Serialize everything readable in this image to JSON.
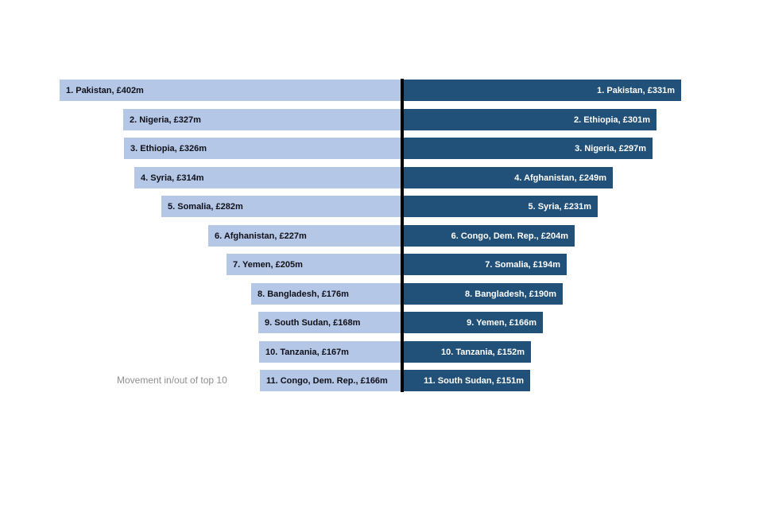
{
  "chart_data": {
    "type": "bar",
    "orientation": "horizontal-back-to-back",
    "title": "",
    "unit": "£ millions",
    "annotation": "Movement in/out of top 10",
    "colors": {
      "left_bar": "#b4c7e7",
      "right_bar": "#215079",
      "divider": "#000000",
      "left_text": "#101018",
      "right_text": "#ffffff",
      "annotation_text": "#8f8f8f"
    },
    "left": {
      "items": [
        {
          "rank": 1,
          "country": "Pakistan",
          "value": 402,
          "label": "1. Pakistan, £402m"
        },
        {
          "rank": 2,
          "country": "Nigeria",
          "value": 327,
          "label": "2. Nigeria, £327m"
        },
        {
          "rank": 3,
          "country": "Ethiopia",
          "value": 326,
          "label": "3. Ethiopia, £326m"
        },
        {
          "rank": 4,
          "country": "Syria",
          "value": 314,
          "label": "4. Syria, £314m"
        },
        {
          "rank": 5,
          "country": "Somalia",
          "value": 282,
          "label": "5. Somalia, £282m"
        },
        {
          "rank": 6,
          "country": "Afghanistan",
          "value": 227,
          "label": "6. Afghanistan, £227m"
        },
        {
          "rank": 7,
          "country": "Yemen",
          "value": 205,
          "label": "7. Yemen, £205m"
        },
        {
          "rank": 8,
          "country": "Bangladesh",
          "value": 176,
          "label": "8. Bangladesh, £176m"
        },
        {
          "rank": 9,
          "country": "South Sudan",
          "value": 168,
          "label": "9. South Sudan, £168m"
        },
        {
          "rank": 10,
          "country": "Tanzania",
          "value": 167,
          "label": "10. Tanzania, £167m"
        },
        {
          "rank": 11,
          "country": "Congo, Dem. Rep.",
          "value": 166,
          "label": "11. Congo, Dem. Rep., £166m"
        }
      ]
    },
    "right": {
      "items": [
        {
          "rank": 1,
          "country": "Pakistan",
          "value": 331,
          "label": "1. Pakistan, £331m"
        },
        {
          "rank": 2,
          "country": "Ethiopia",
          "value": 301,
          "label": "2. Ethiopia, £301m"
        },
        {
          "rank": 3,
          "country": "Nigeria",
          "value": 297,
          "label": "3. Nigeria, £297m"
        },
        {
          "rank": 4,
          "country": "Afghanistan",
          "value": 249,
          "label": "4. Afghanistan, £249m"
        },
        {
          "rank": 5,
          "country": "Syria",
          "value": 231,
          "label": "5. Syria, £231m"
        },
        {
          "rank": 6,
          "country": "Congo, Dem. Rep.",
          "value": 204,
          "label": "6. Congo, Dem. Rep., £204m"
        },
        {
          "rank": 7,
          "country": "Somalia",
          "value": 194,
          "label": "7. Somalia, £194m"
        },
        {
          "rank": 8,
          "country": "Bangladesh",
          "value": 190,
          "label": "8. Bangladesh, £190m"
        },
        {
          "rank": 9,
          "country": "Yemen",
          "value": 166,
          "label": "9. Yemen, £166m"
        },
        {
          "rank": 10,
          "country": "Tanzania",
          "value": 152,
          "label": "10. Tanzania, £152m"
        },
        {
          "rank": 11,
          "country": "South Sudan",
          "value": 151,
          "label": "11. South Sudan, £151m"
        }
      ]
    }
  }
}
